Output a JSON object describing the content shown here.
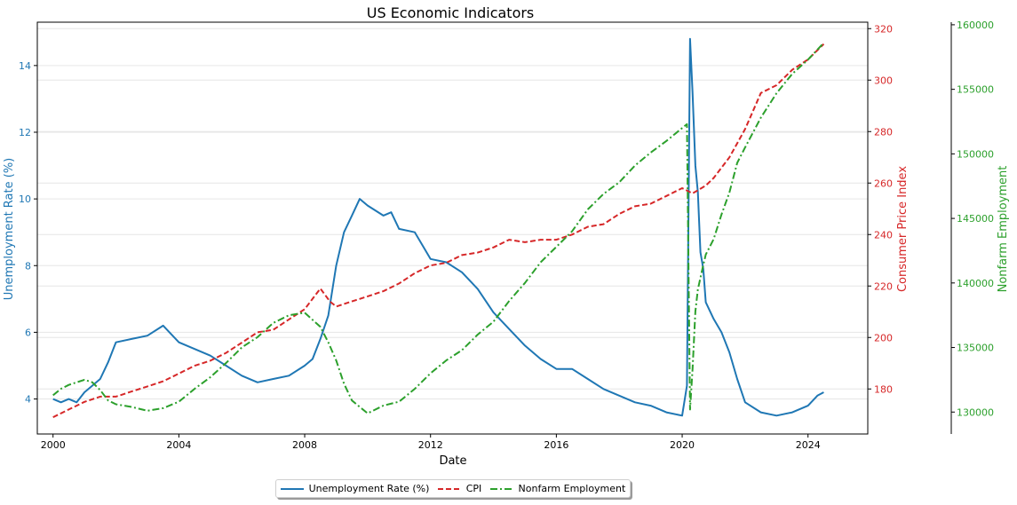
{
  "colors": {
    "unemployment": "#1f77b4",
    "cpi": "#d62728",
    "employment": "#2ca02c",
    "grid": "#e6e6e6"
  },
  "chart_data": {
    "type": "line",
    "title": "US Economic Indicators",
    "xlabel": "Date",
    "x_ticks": [
      "2000",
      "2004",
      "2008",
      "2012",
      "2016",
      "2020",
      "2024"
    ],
    "xlim": [
      1999.5,
      2025.9
    ],
    "grid": true,
    "legend_position": "bottom-center",
    "axes": {
      "unemployment": {
        "label": "Unemployment Rate (%)",
        "side": "left",
        "ylim": [
          2.95,
          15.3
        ],
        "ticks": [
          4,
          6,
          8,
          10,
          12,
          14
        ]
      },
      "cpi": {
        "label": "Consumer Price Index",
        "side": "right",
        "ylim": [
          162.5,
          322.5
        ],
        "ticks": [
          180,
          200,
          220,
          240,
          260,
          280,
          300,
          320
        ]
      },
      "employment": {
        "label": "Nonfarm Employment",
        "side": "right-outer",
        "ylim": [
          128300,
          160200
        ],
        "ticks": [
          130000,
          135000,
          140000,
          145000,
          150000,
          155000,
          160000
        ]
      }
    },
    "series": [
      {
        "name": "Unemployment Rate (%)",
        "axis": "unemployment",
        "style": "solid",
        "x": [
          2000.0,
          2000.25,
          2000.5,
          2000.75,
          2001.0,
          2001.25,
          2001.5,
          2001.75,
          2002.0,
          2002.5,
          2003.0,
          2003.5,
          2004.0,
          2004.5,
          2005.0,
          2005.5,
          2006.0,
          2006.5,
          2007.0,
          2007.5,
          2008.0,
          2008.25,
          2008.5,
          2008.75,
          2009.0,
          2009.25,
          2009.5,
          2009.75,
          2010.0,
          2010.5,
          2010.75,
          2011.0,
          2011.5,
          2012.0,
          2012.5,
          2013.0,
          2013.5,
          2014.0,
          2014.5,
          2015.0,
          2015.5,
          2016.0,
          2016.5,
          2017.0,
          2017.5,
          2018.0,
          2018.5,
          2019.0,
          2019.5,
          2020.0,
          2020.15,
          2020.25,
          2020.33,
          2020.42,
          2020.5,
          2020.58,
          2020.67,
          2020.75,
          2021.0,
          2021.25,
          2021.5,
          2021.75,
          2022.0,
          2022.5,
          2023.0,
          2023.5,
          2024.0,
          2024.3,
          2024.5
        ],
        "values": [
          4.0,
          3.9,
          4.0,
          3.9,
          4.2,
          4.4,
          4.6,
          5.1,
          5.7,
          5.8,
          5.9,
          6.2,
          5.7,
          5.5,
          5.3,
          5.0,
          4.7,
          4.5,
          4.6,
          4.7,
          5.0,
          5.2,
          5.8,
          6.5,
          8.0,
          9.0,
          9.5,
          10.0,
          9.8,
          9.5,
          9.6,
          9.1,
          9.0,
          8.2,
          8.1,
          7.8,
          7.3,
          6.6,
          6.1,
          5.6,
          5.2,
          4.9,
          4.9,
          4.6,
          4.3,
          4.1,
          3.9,
          3.8,
          3.6,
          3.5,
          4.4,
          14.8,
          13.2,
          11.0,
          10.2,
          8.4,
          7.9,
          6.9,
          6.4,
          6.0,
          5.4,
          4.6,
          3.9,
          3.6,
          3.5,
          3.6,
          3.8,
          4.1,
          4.2
        ]
      },
      {
        "name": "CPI",
        "axis": "cpi",
        "style": "dashed",
        "x": [
          2000.0,
          2000.5,
          2001.0,
          2001.5,
          2002.0,
          2002.5,
          2003.0,
          2003.5,
          2004.0,
          2004.5,
          2005.0,
          2005.5,
          2006.0,
          2006.5,
          2007.0,
          2007.5,
          2008.0,
          2008.5,
          2008.8,
          2009.0,
          2009.5,
          2010.0,
          2010.5,
          2011.0,
          2011.5,
          2012.0,
          2012.5,
          2013.0,
          2013.5,
          2014.0,
          2014.5,
          2015.0,
          2015.5,
          2016.0,
          2016.5,
          2017.0,
          2017.5,
          2018.0,
          2018.5,
          2019.0,
          2019.5,
          2020.0,
          2020.33,
          2020.75,
          2021.0,
          2021.5,
          2022.0,
          2022.5,
          2023.0,
          2023.5,
          2024.0,
          2024.5
        ],
        "values": [
          169,
          172,
          175,
          177,
          177,
          179,
          181,
          183,
          186,
          189,
          191,
          194,
          198,
          202,
          203,
          207,
          211,
          219,
          214,
          212,
          214,
          216,
          218,
          221,
          225,
          228,
          229,
          232,
          233,
          235,
          238,
          237,
          238,
          238,
          240,
          243,
          244,
          248,
          251,
          252,
          255,
          258,
          256,
          259,
          262,
          270,
          281,
          295,
          298,
          304,
          308,
          314
        ]
      },
      {
        "name": "Nonfarm Employment",
        "axis": "employment",
        "style": "dashdot",
        "x": [
          2000.0,
          2000.25,
          2000.5,
          2001.0,
          2001.25,
          2001.5,
          2001.75,
          2002.0,
          2002.5,
          2003.0,
          2003.5,
          2004.0,
          2004.5,
          2005.0,
          2005.5,
          2006.0,
          2006.5,
          2007.0,
          2007.5,
          2008.0,
          2008.5,
          2008.75,
          2009.0,
          2009.25,
          2009.5,
          2009.75,
          2010.0,
          2010.5,
          2011.0,
          2011.5,
          2012.0,
          2012.5,
          2013.0,
          2013.5,
          2014.0,
          2014.5,
          2015.0,
          2015.5,
          2016.0,
          2016.5,
          2017.0,
          2017.5,
          2018.0,
          2018.5,
          2019.0,
          2019.5,
          2020.0,
          2020.15,
          2020.25,
          2020.33,
          2020.42,
          2020.5,
          2020.67,
          2020.75,
          2021.0,
          2021.25,
          2021.5,
          2021.75,
          2022.0,
          2022.5,
          2023.0,
          2023.5,
          2024.0,
          2024.5
        ],
        "values": [
          131300,
          131800,
          132100,
          132500,
          132300,
          131700,
          130900,
          130600,
          130400,
          130100,
          130300,
          130800,
          131800,
          132700,
          133800,
          135000,
          135800,
          136900,
          137500,
          137700,
          136600,
          135400,
          134000,
          132200,
          130900,
          130400,
          129900,
          130500,
          130800,
          131800,
          133000,
          134000,
          134800,
          136000,
          137000,
          138600,
          140000,
          141600,
          142800,
          144000,
          145700,
          146900,
          147800,
          149100,
          150100,
          151000,
          152000,
          152300,
          130200,
          133300,
          137800,
          139500,
          141400,
          142200,
          143400,
          145300,
          147000,
          149300,
          150500,
          152800,
          154700,
          156200,
          157300,
          158600
        ]
      }
    ]
  }
}
